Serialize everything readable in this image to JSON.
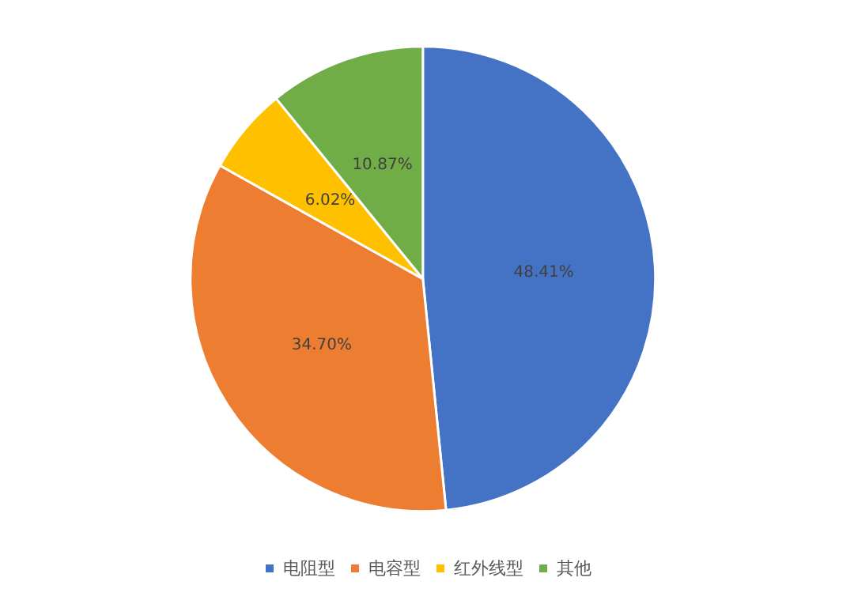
{
  "chart_data": {
    "type": "pie",
    "categories": [
      "电阻型",
      "电容型",
      "红外线型",
      "其他"
    ],
    "values": [
      48.41,
      34.7,
      6.02,
      10.87
    ],
    "colors": [
      "#4472c4",
      "#ed7d31",
      "#ffc000",
      "#70ad47"
    ],
    "value_labels": [
      "48.41%",
      "34.70%",
      "6.02%",
      "10.87%"
    ],
    "legend": "bottom"
  }
}
